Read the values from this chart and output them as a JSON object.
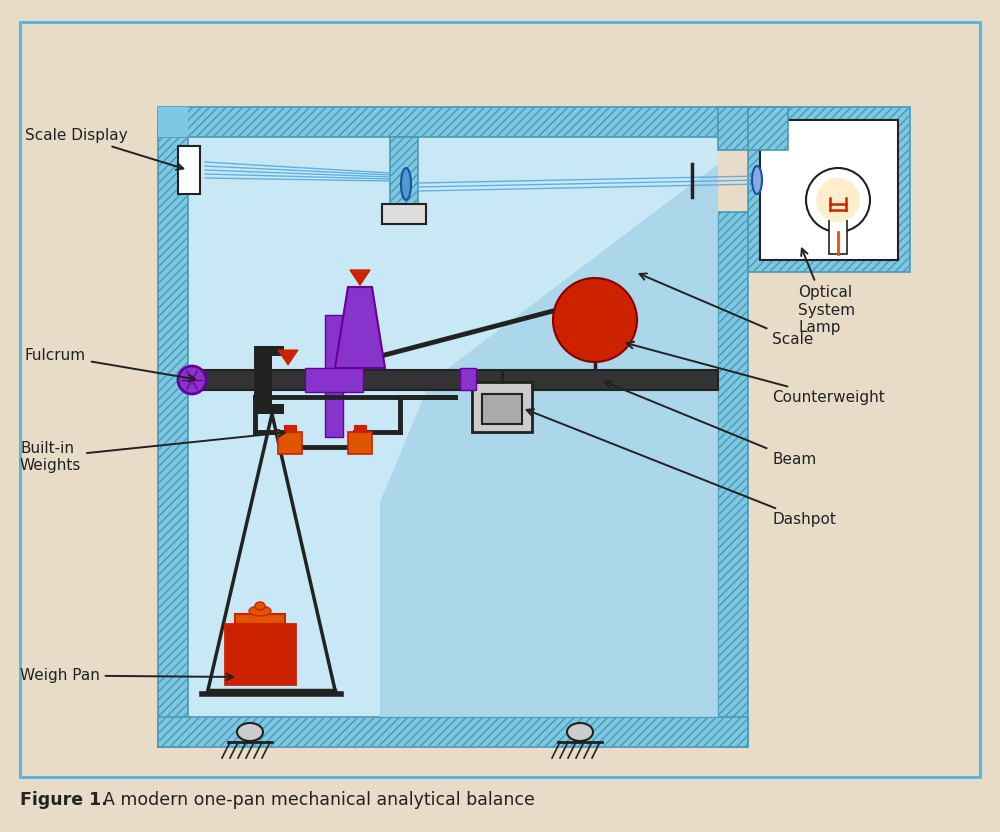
{
  "bg_color": "#e8dbc8",
  "border_color": "#5ab8d8",
  "figure_caption_bold": "Figure 1.",
  "figure_caption_rest": "  A modern one-pan mechanical analytical balance",
  "labels": {
    "scale_display": "Scale Display",
    "fulcrum": "Fulcrum",
    "built_in_weights": "Built-in\nWeights",
    "weigh_pan": "Weigh Pan",
    "optical_system_lamp": "Optical\nSystem\nLamp",
    "scale": "Scale",
    "counterweight": "Counterweight",
    "beam": "Beam",
    "dashpot": "Dashpot"
  },
  "hatch_fill": "#7ec8e3",
  "hatch_edge": "#4a9ab5",
  "interior_bg": "#c8e8f5",
  "scale_poly_color": "#a8d5ea",
  "purple": "#8833cc",
  "purple_dark": "#660099",
  "red": "#cc2200",
  "orange": "#e05500",
  "dark": "#222222",
  "gray_light": "#cccccc",
  "white": "#ffffff",
  "blue_line": "#55aadd"
}
